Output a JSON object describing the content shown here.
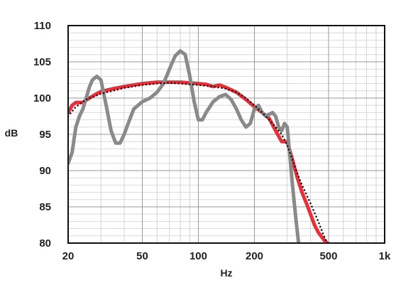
{
  "chart_data": {
    "type": "line",
    "title": "",
    "xlabel": "Hz",
    "ylabel": "dB",
    "x_scale": "log",
    "xlim": [
      20,
      1000
    ],
    "ylim": [
      80,
      110
    ],
    "grid": true,
    "legend": "none",
    "x_ticks": [
      {
        "value": 20,
        "label": "20"
      },
      {
        "value": 50,
        "label": "50"
      },
      {
        "value": 100,
        "label": "100"
      },
      {
        "value": 200,
        "label": "200"
      },
      {
        "value": 500,
        "label": "500"
      },
      {
        "value": 1000,
        "label": "1k"
      }
    ],
    "y_ticks": [
      {
        "value": 110,
        "label": "110"
      },
      {
        "value": 105,
        "label": "105"
      },
      {
        "value": 100,
        "label": "100"
      },
      {
        "value": 95,
        "label": "95"
      },
      {
        "value": 90,
        "label": "90"
      },
      {
        "value": 85,
        "label": "85"
      },
      {
        "value": 80,
        "label": "80"
      }
    ],
    "series": [
      {
        "color": "#e8303a",
        "style": "solid",
        "points": [
          [
            20,
            98.0
          ],
          [
            21,
            99.0
          ],
          [
            22,
            99.4
          ],
          [
            24,
            99.4
          ],
          [
            26,
            100.0
          ],
          [
            28,
            100.5
          ],
          [
            30,
            100.9
          ],
          [
            35,
            101.3
          ],
          [
            40,
            101.6
          ],
          [
            50,
            102.0
          ],
          [
            60,
            102.2
          ],
          [
            70,
            102.2
          ],
          [
            80,
            102.2
          ],
          [
            90,
            102.1
          ],
          [
            100,
            102.0
          ],
          [
            110,
            101.9
          ],
          [
            120,
            101.6
          ],
          [
            130,
            101.8
          ],
          [
            140,
            101.5
          ],
          [
            160,
            100.8
          ],
          [
            180,
            99.8
          ],
          [
            200,
            98.8
          ],
          [
            220,
            98.0
          ],
          [
            240,
            97.2
          ],
          [
            260,
            95.5
          ],
          [
            280,
            94.0
          ],
          [
            300,
            94.0
          ],
          [
            320,
            91.5
          ],
          [
            340,
            89.0
          ],
          [
            360,
            87.0
          ],
          [
            380,
            85.5
          ],
          [
            400,
            84.0
          ],
          [
            420,
            82.5
          ],
          [
            440,
            81.5
          ],
          [
            470,
            80.5
          ],
          [
            490,
            80.0
          ]
        ]
      },
      {
        "color": "#1a1a1a",
        "style": "dotted",
        "points": [
          [
            20,
            97.5
          ],
          [
            22,
            98.8
          ],
          [
            25,
            99.8
          ],
          [
            30,
            100.6
          ],
          [
            40,
            101.4
          ],
          [
            50,
            101.8
          ],
          [
            60,
            102.0
          ],
          [
            70,
            102.1
          ],
          [
            80,
            102.0
          ],
          [
            100,
            101.8
          ],
          [
            120,
            101.6
          ],
          [
            140,
            101.3
          ],
          [
            160,
            100.8
          ],
          [
            180,
            100.0
          ],
          [
            200,
            99.0
          ],
          [
            220,
            98.0
          ],
          [
            250,
            96.5
          ],
          [
            280,
            95.0
          ],
          [
            300,
            93.5
          ],
          [
            330,
            90.5
          ],
          [
            360,
            88.0
          ],
          [
            400,
            85.5
          ],
          [
            440,
            83.0
          ],
          [
            480,
            80.5
          ],
          [
            500,
            80.0
          ]
        ]
      },
      {
        "color": "#8a8a8a",
        "style": "solid",
        "points": [
          [
            20,
            91.0
          ],
          [
            21,
            92.5
          ],
          [
            22,
            96.0
          ],
          [
            23,
            97.5
          ],
          [
            24,
            98.5
          ],
          [
            25,
            100.0
          ],
          [
            26,
            101.5
          ],
          [
            27,
            102.5
          ],
          [
            28.5,
            103.0
          ],
          [
            30,
            102.5
          ],
          [
            32,
            99.0
          ],
          [
            34,
            95.5
          ],
          [
            36,
            93.8
          ],
          [
            38,
            93.8
          ],
          [
            40,
            95.0
          ],
          [
            42,
            96.5
          ],
          [
            45,
            98.5
          ],
          [
            50,
            99.5
          ],
          [
            55,
            100.0
          ],
          [
            60,
            100.8
          ],
          [
            65,
            102.0
          ],
          [
            70,
            104.0
          ],
          [
            75,
            105.8
          ],
          [
            80,
            106.5
          ],
          [
            85,
            106.0
          ],
          [
            90,
            103.0
          ],
          [
            95,
            99.5
          ],
          [
            100,
            97.0
          ],
          [
            105,
            97.0
          ],
          [
            110,
            98.0
          ],
          [
            120,
            99.5
          ],
          [
            130,
            100.2
          ],
          [
            140,
            100.5
          ],
          [
            150,
            99.8
          ],
          [
            160,
            98.5
          ],
          [
            170,
            97.0
          ],
          [
            180,
            96.0
          ],
          [
            190,
            96.5
          ],
          [
            200,
            98.5
          ],
          [
            210,
            99.0
          ],
          [
            220,
            98.0
          ],
          [
            230,
            97.5
          ],
          [
            250,
            98.0
          ],
          [
            260,
            97.5
          ],
          [
            270,
            96.0
          ],
          [
            280,
            95.5
          ],
          [
            290,
            96.5
          ],
          [
            300,
            96.0
          ],
          [
            310,
            92.0
          ],
          [
            320,
            88.0
          ],
          [
            335,
            83.0
          ],
          [
            345,
            80.0
          ]
        ]
      }
    ]
  }
}
